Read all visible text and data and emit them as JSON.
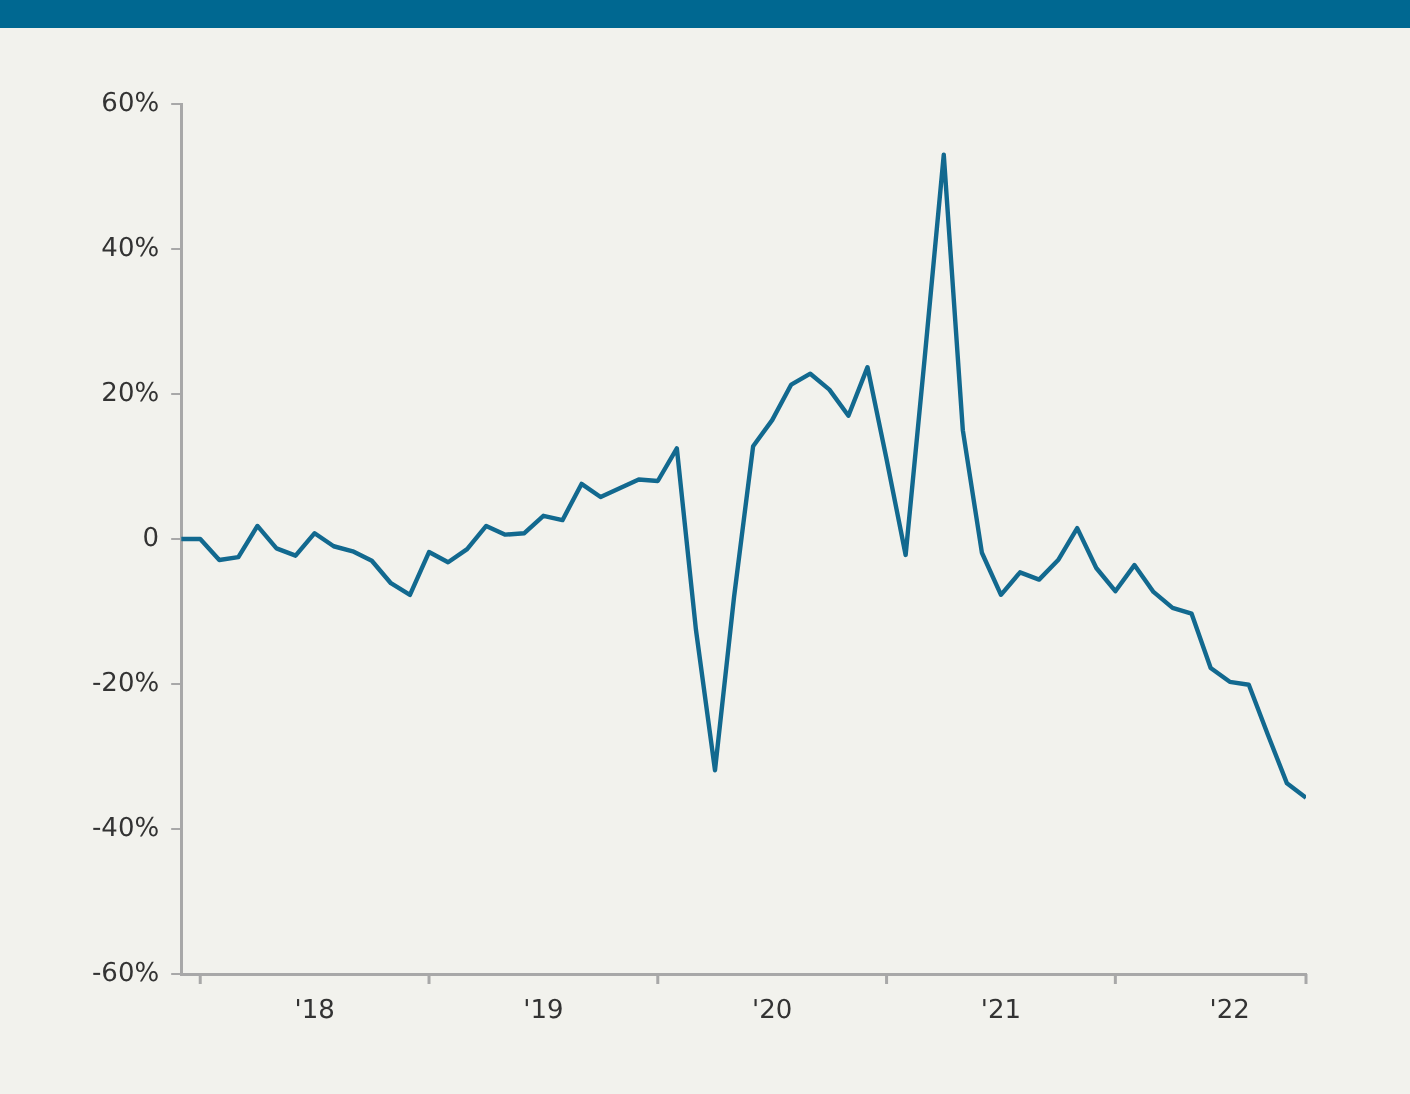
{
  "chart_data": {
    "type": "line",
    "x": [
      "2018-01",
      "2018-02",
      "2018-03",
      "2018-04",
      "2018-05",
      "2018-06",
      "2018-07",
      "2018-08",
      "2018-09",
      "2018-10",
      "2018-11",
      "2018-12",
      "2019-01",
      "2019-02",
      "2019-03",
      "2019-04",
      "2019-05",
      "2019-06",
      "2019-07",
      "2019-08",
      "2019-09",
      "2019-10",
      "2019-11",
      "2019-12",
      "2020-01",
      "2020-02",
      "2020-03",
      "2020-04",
      "2020-05",
      "2020-06",
      "2020-07",
      "2020-08",
      "2020-09",
      "2020-10",
      "2020-11",
      "2020-12",
      "2021-01",
      "2021-02",
      "2021-03",
      "2021-04",
      "2021-05",
      "2021-06",
      "2021-07",
      "2021-08",
      "2021-09",
      "2021-10",
      "2021-11",
      "2021-12",
      "2022-01",
      "2022-02",
      "2022-03",
      "2022-04",
      "2022-05",
      "2022-06",
      "2022-07",
      "2022-08",
      "2022-09",
      "2022-10",
      "2022-11",
      "2022-12"
    ],
    "series": [
      {
        "color": "#12698f",
        "values": [
          0,
          0,
          -2.9,
          -2.5,
          1.8,
          -1.3,
          -2.3,
          0.8,
          -1.0,
          -1.7,
          -3.0,
          -6.1,
          -7.7,
          -1.8,
          -3.2,
          -1.4,
          1.8,
          0.6,
          0.8,
          3.2,
          2.6,
          7.6,
          5.8,
          7.0,
          8.2,
          8.0,
          12.5,
          -12.5,
          -31.9,
          -8,
          12.8,
          16.4,
          21.3,
          22.8,
          20.6,
          17.0,
          23.7,
          11,
          -2.2,
          25,
          53,
          15,
          -1.9,
          -7.7,
          -4.6,
          -5.6,
          -2.9,
          1.5,
          -4.0,
          -7.2,
          -3.6,
          -7.3,
          -9.5,
          -10.3,
          -17.8,
          -19.7,
          -20.1,
          -27,
          -33.7,
          -35.7
        ]
      }
    ],
    "xlim": [
      "2018-01",
      "2022-12"
    ],
    "xticks": [
      {
        "value": "2018-02",
        "label": null
      },
      {
        "value": "2018-08",
        "label": "'18"
      },
      {
        "value": "2019-02",
        "label": null
      },
      {
        "value": "2019-08",
        "label": "'19"
      },
      {
        "value": "2020-02",
        "label": null
      },
      {
        "value": "2020-08",
        "label": "'20"
      },
      {
        "value": "2021-02",
        "label": null
      },
      {
        "value": "2021-08",
        "label": "'21"
      },
      {
        "value": "2022-02",
        "label": null
      },
      {
        "value": "2022-08",
        "label": "'22"
      },
      {
        "value": "2022-12",
        "label": null
      }
    ],
    "ylim": [
      -60,
      60
    ],
    "yticks": [
      {
        "value": -60,
        "label": "-60%"
      },
      {
        "value": -40,
        "label": "-40%"
      },
      {
        "value": -20,
        "label": "-20%"
      },
      0,
      {
        "value": 20,
        "label": "20%"
      },
      {
        "value": 40,
        "label": "40%"
      },
      {
        "value": 60,
        "label": "60%"
      }
    ],
    "grid": false,
    "legend": false,
    "marker": "none",
    "line_style": "solid"
  }
}
